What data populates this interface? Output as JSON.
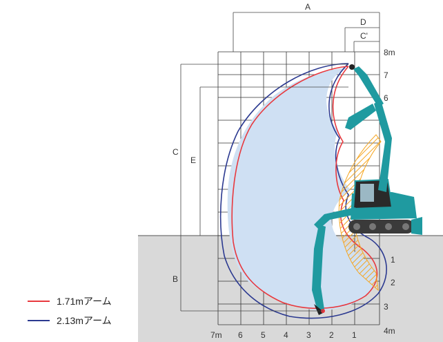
{
  "diagram": {
    "dimension_labels": {
      "A": "A",
      "B": "B",
      "C": "C",
      "C_prime": "C'",
      "D": "D",
      "E": "E"
    },
    "right_scale": [
      "8m",
      "7",
      "6",
      "1",
      "2",
      "3",
      "4m"
    ],
    "bottom_scale": [
      "7m",
      "6",
      "5",
      "4",
      "3",
      "2",
      "1"
    ]
  },
  "legend": [
    {
      "label": "1.71mアーム",
      "color": "#e8383d"
    },
    {
      "label": "2.13mアーム",
      "color": "#2b3990"
    }
  ],
  "colors": {
    "reach_area_fill": "#cfe0f3",
    "ground_fill": "#d9d9d9",
    "excavator_body": "#1f9aa0",
    "counterweight_hatch": "#f5a623",
    "grid": "#333333"
  }
}
